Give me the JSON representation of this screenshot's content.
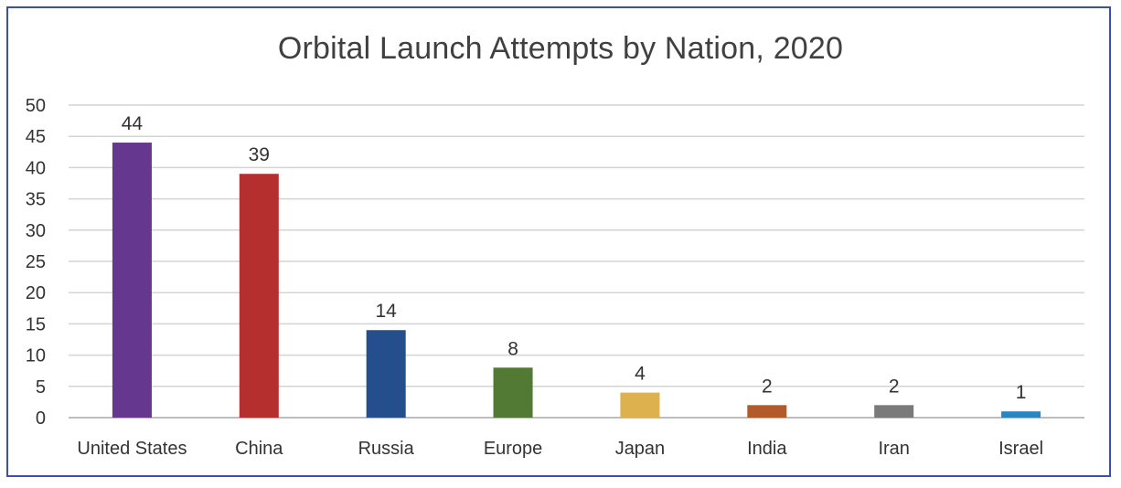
{
  "chart_data": {
    "type": "bar",
    "title": "Orbital Launch Attempts by Nation, 2020",
    "categories": [
      "United States",
      "China",
      "Russia",
      "Europe",
      "Japan",
      "India",
      "Iran",
      "Israel"
    ],
    "values": [
      44,
      39,
      14,
      8,
      4,
      2,
      2,
      1
    ],
    "colors": [
      "#65378f",
      "#b52f2f",
      "#254f8c",
      "#527a35",
      "#ddb24e",
      "#b35a2a",
      "#7a7a7a",
      "#2a86c2"
    ],
    "ylim": [
      0,
      50
    ],
    "yticks": [
      0,
      5,
      10,
      15,
      20,
      25,
      30,
      35,
      40,
      45,
      50
    ],
    "grid": true,
    "legend": "none",
    "data_labels": true
  }
}
